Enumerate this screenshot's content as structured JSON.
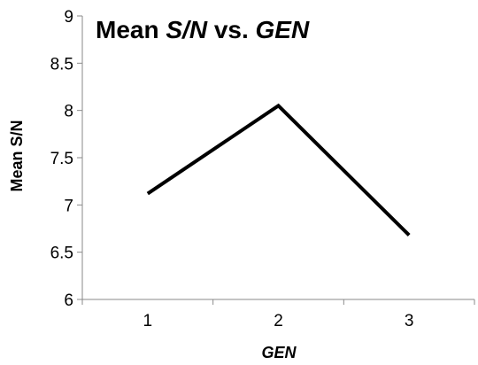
{
  "chart_data": {
    "type": "line",
    "title": {
      "parts": [
        {
          "text": "Mean ",
          "italic": false
        },
        {
          "text": "S/N",
          "italic": true
        },
        {
          "text": " vs. ",
          "italic": false
        },
        {
          "text": "GEN",
          "italic": true
        }
      ]
    },
    "xlabel": "GEN",
    "ylabel": "Mean S/N",
    "categories": [
      "1",
      "2",
      "3"
    ],
    "series": [
      {
        "values": [
          7.12,
          8.05,
          6.68
        ]
      }
    ],
    "ylim": [
      6,
      9
    ],
    "yticks": [
      "6",
      "6.5",
      "7",
      "7.5",
      "8",
      "8.5",
      "9"
    ],
    "grid": false,
    "legend": "none",
    "line_color": "#000000"
  }
}
